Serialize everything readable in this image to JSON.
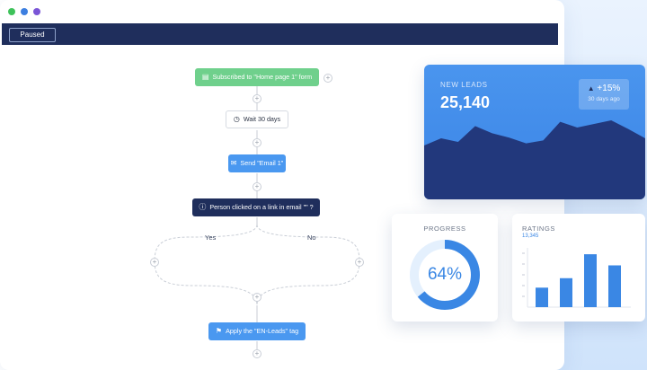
{
  "window": {
    "dots": [
      "#3ec25a",
      "#3d7fe0",
      "#7a55d6"
    ]
  },
  "toolbar": {
    "status_label": "Paused"
  },
  "flow": {
    "trigger": {
      "label": "Subscribed to \"Home page 1\" form",
      "icon": "form-icon"
    },
    "wait": {
      "label": "Wait 30 days",
      "icon": "clock-icon"
    },
    "email": {
      "label": "Send \"Email 1\"",
      "icon": "envelope-icon"
    },
    "condition": {
      "label": "Person clicked on a link in email \"\" ?",
      "icon": "question-icon"
    },
    "branch_yes": "Yes",
    "branch_no": "No",
    "tag": {
      "label": "Apply the \"EN-Leads\" tag",
      "icon": "tag-icon"
    }
  },
  "leads_card": {
    "title": "NEW LEADS",
    "value": "25,140",
    "delta": "+15%",
    "delta_period": "30 days ago",
    "sparkline": [
      0.25,
      0.35,
      0.3,
      0.52,
      0.42,
      0.36,
      0.28,
      0.32,
      0.58,
      0.5,
      0.55,
      0.6,
      0.48,
      0.35
    ]
  },
  "progress_card": {
    "title": "PROGRESS",
    "value": "64%",
    "fraction": 0.64
  },
  "ratings_card": {
    "title": "RATINGS",
    "subtitle": "13,345",
    "bars": [
      0.35,
      0.52,
      0.95,
      0.75
    ]
  },
  "colors": {
    "trigger": "#6fd08c",
    "email": "#4a98f0",
    "condition": "#1f2e5c",
    "tag": "#4a98f0",
    "accent": "#3a87e4"
  }
}
